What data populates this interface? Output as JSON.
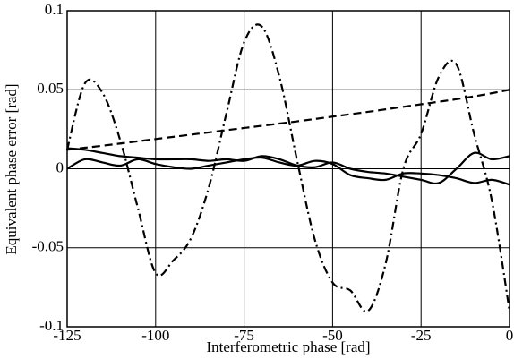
{
  "chart_data": {
    "type": "line",
    "x_label": "Interferometric phase [rad]",
    "y_label": "Equivalent phase error [rad]",
    "x": [
      -125,
      -120,
      -115,
      -110,
      -105,
      -100,
      -95,
      -90,
      -85,
      -80,
      -75,
      -70,
      -65,
      -60,
      -55,
      -50,
      -45,
      -40,
      -35,
      -30,
      -25,
      -20,
      -15,
      -10,
      -5,
      0
    ],
    "series": [
      {
        "color": "#000000",
        "style": "dashdot",
        "values": [
          0.012,
          0.054,
          0.048,
          0.018,
          -0.025,
          -0.066,
          -0.058,
          -0.044,
          -0.012,
          0.035,
          0.08,
          0.09,
          0.058,
          0.005,
          -0.045,
          -0.072,
          -0.077,
          -0.09,
          -0.06,
          0.0,
          0.022,
          0.058,
          0.066,
          0.022,
          -0.02,
          -0.09
        ]
      },
      {
        "color": "#000000",
        "style": "dashed",
        "values": [
          0.012,
          0.0133,
          0.0146,
          0.016,
          0.0174,
          0.0188,
          0.0202,
          0.0216,
          0.023,
          0.0244,
          0.0258,
          0.0272,
          0.0286,
          0.03,
          0.0315,
          0.033,
          0.0345,
          0.036,
          0.0376,
          0.0392,
          0.0408,
          0.0424,
          0.044,
          0.0458,
          0.0478,
          0.05
        ]
      },
      {
        "color": "#000000",
        "style": "solid",
        "values": [
          0.013,
          0.012,
          0.01,
          0.008,
          0.007,
          0.006,
          0.006,
          0.006,
          0.005,
          0.006,
          0.005,
          0.008,
          0.006,
          0.002,
          0.001,
          0.004,
          0.0,
          -0.002,
          -0.003,
          -0.005,
          -0.007,
          -0.009,
          0.0,
          0.01,
          0.006,
          0.008
        ]
      },
      {
        "color": "#000000",
        "style": "solid",
        "values": [
          0.0,
          0.006,
          0.004,
          0.002,
          0.006,
          0.003,
          0.001,
          0.0,
          0.002,
          0.004,
          0.006,
          0.007,
          0.004,
          0.002,
          0.005,
          0.003,
          -0.004,
          -0.006,
          -0.007,
          -0.003,
          -0.003,
          -0.004,
          -0.006,
          -0.009,
          -0.007,
          -0.01
        ]
      }
    ],
    "xlim": [
      -125,
      0
    ],
    "ylim": [
      -0.1,
      0.1
    ],
    "xticks": [
      -125,
      -100,
      -75,
      -50,
      -25,
      0
    ],
    "yticks": [
      -0.1,
      -0.05,
      0,
      0.05,
      0.1
    ],
    "grid": true
  }
}
